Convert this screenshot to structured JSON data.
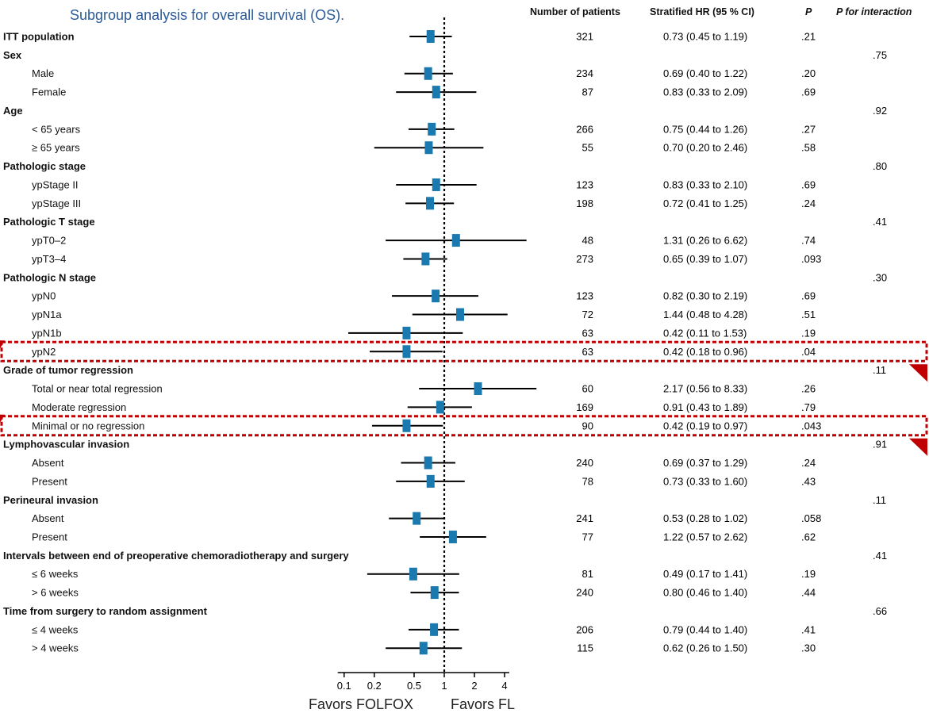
{
  "title": "Subgroup analysis for overall survival (OS).",
  "headers": {
    "patients": "Number of patients",
    "hr": "Stratified HR (95 % CI)",
    "p": "P",
    "p_interaction": "P for interaction"
  },
  "favors_left": "Favors FOLFOX",
  "favors_right": "Favors FL",
  "colors": {
    "marker": "#1a7ab0",
    "highlight": "#c00000",
    "title": "#2a5a9a"
  },
  "chart_data": {
    "type": "forest",
    "x_scale": "log",
    "xlim": [
      0.1,
      4
    ],
    "x_ticks": [
      {
        "value": 0.1,
        "label": "0.1"
      },
      {
        "value": 0.2,
        "label": "0.2"
      },
      {
        "value": 0.5,
        "label": "0.5"
      },
      {
        "value": 1,
        "label": "1"
      },
      {
        "value": 2,
        "label": "2"
      },
      {
        "value": 4,
        "label": "4"
      }
    ],
    "reference_line": 1,
    "rows": [
      {
        "label": "ITT population",
        "level": 0,
        "n": "321",
        "hr_text": "0.73 (0.45 to 1.19)",
        "p": ".21",
        "p_int": "",
        "hr": 0.73,
        "lo": 0.45,
        "hi": 1.19
      },
      {
        "label": "Sex",
        "level": 0,
        "n": "",
        "hr_text": "",
        "p": "",
        "p_int": ".75"
      },
      {
        "label": "Male",
        "level": 1,
        "n": "234",
        "hr_text": "0.69 (0.40 to 1.22)",
        "p": ".20",
        "p_int": "",
        "hr": 0.69,
        "lo": 0.4,
        "hi": 1.22
      },
      {
        "label": "Female",
        "level": 1,
        "n": "87",
        "hr_text": "0.83 (0.33 to 2.09)",
        "p": ".69",
        "p_int": "",
        "hr": 0.83,
        "lo": 0.33,
        "hi": 2.09
      },
      {
        "label": "Age",
        "level": 0,
        "n": "",
        "hr_text": "",
        "p": "",
        "p_int": ".92"
      },
      {
        "label": "< 65 years",
        "level": 1,
        "n": "266",
        "hr_text": "0.75 (0.44 to 1.26)",
        "p": ".27",
        "p_int": "",
        "hr": 0.75,
        "lo": 0.44,
        "hi": 1.26
      },
      {
        "label": "≥ 65 years",
        "level": 1,
        "n": "55",
        "hr_text": "0.70 (0.20 to 2.46)",
        "p": ".58",
        "p_int": "",
        "hr": 0.7,
        "lo": 0.2,
        "hi": 2.46
      },
      {
        "label": "Pathologic stage",
        "level": 0,
        "n": "",
        "hr_text": "",
        "p": "",
        "p_int": ".80"
      },
      {
        "label": "ypStage II",
        "level": 1,
        "n": "123",
        "hr_text": "0.83 (0.33 to 2.10)",
        "p": ".69",
        "p_int": "",
        "hr": 0.83,
        "lo": 0.33,
        "hi": 2.1
      },
      {
        "label": "ypStage III",
        "level": 1,
        "n": "198",
        "hr_text": "0.72 (0.41 to 1.25)",
        "p": ".24",
        "p_int": "",
        "hr": 0.72,
        "lo": 0.41,
        "hi": 1.25
      },
      {
        "label": "Pathologic T stage",
        "level": 0,
        "n": "",
        "hr_text": "",
        "p": "",
        "p_int": ".41"
      },
      {
        "label": "ypT0–2",
        "level": 1,
        "n": "48",
        "hr_text": "1.31 (0.26 to 6.62)",
        "p": ".74",
        "p_int": "",
        "hr": 1.31,
        "lo": 0.26,
        "hi": 6.62
      },
      {
        "label": "ypT3–4",
        "level": 1,
        "n": "273",
        "hr_text": "0.65 (0.39 to 1.07)",
        "p": ".093",
        "p_int": "",
        "hr": 0.65,
        "lo": 0.39,
        "hi": 1.07
      },
      {
        "label": "Pathologic N stage",
        "level": 0,
        "n": "",
        "hr_text": "",
        "p": "",
        "p_int": ".30"
      },
      {
        "label": "ypN0",
        "level": 1,
        "n": "123",
        "hr_text": "0.82 (0.30 to 2.19)",
        "p": ".69",
        "p_int": "",
        "hr": 0.82,
        "lo": 0.3,
        "hi": 2.19
      },
      {
        "label": "ypN1a",
        "level": 1,
        "n": "72",
        "hr_text": "1.44 (0.48 to 4.28)",
        "p": ".51",
        "p_int": "",
        "hr": 1.44,
        "lo": 0.48,
        "hi": 4.28
      },
      {
        "label": "ypN1b",
        "level": 1,
        "n": "63",
        "hr_text": "0.42 (0.11 to 1.53)",
        "p": ".19",
        "p_int": "",
        "hr": 0.42,
        "lo": 0.11,
        "hi": 1.53
      },
      {
        "label": "ypN2",
        "level": 1,
        "n": "63",
        "hr_text": "0.42 (0.18 to 0.96)",
        "p": ".04",
        "p_int": "",
        "hr": 0.42,
        "lo": 0.18,
        "hi": 0.96,
        "highlight": true
      },
      {
        "label": "Grade of tumor regression",
        "level": 0,
        "n": "",
        "hr_text": "",
        "p": "",
        "p_int": ".11"
      },
      {
        "label": "Total or near total regression",
        "level": 1,
        "n": "60",
        "hr_text": "2.17 (0.56 to 8.33)",
        "p": ".26",
        "p_int": "",
        "hr": 2.17,
        "lo": 0.56,
        "hi": 8.33
      },
      {
        "label": "Moderate regression",
        "level": 1,
        "n": "169",
        "hr_text": "0.91 (0.43 to 1.89)",
        "p": ".79",
        "p_int": "",
        "hr": 0.91,
        "lo": 0.43,
        "hi": 1.89
      },
      {
        "label": "Minimal or no regression",
        "level": 1,
        "n": "90",
        "hr_text": "0.42 (0.19 to 0.97)",
        "p": ".043",
        "p_int": "",
        "hr": 0.42,
        "lo": 0.19,
        "hi": 0.97,
        "highlight": true
      },
      {
        "label": "Lymphovascular invasion",
        "level": 0,
        "n": "",
        "hr_text": "",
        "p": "",
        "p_int": ".91"
      },
      {
        "label": "Absent",
        "level": 1,
        "n": "240",
        "hr_text": "0.69 (0.37 to 1.29)",
        "p": ".24",
        "p_int": "",
        "hr": 0.69,
        "lo": 0.37,
        "hi": 1.29
      },
      {
        "label": "Present",
        "level": 1,
        "n": "78",
        "hr_text": "0.73 (0.33 to 1.60)",
        "p": ".43",
        "p_int": "",
        "hr": 0.73,
        "lo": 0.33,
        "hi": 1.6
      },
      {
        "label": "Perineural invasion",
        "level": 0,
        "n": "",
        "hr_text": "",
        "p": "",
        "p_int": ".11"
      },
      {
        "label": "Absent",
        "level": 1,
        "n": "241",
        "hr_text": "0.53 (0.28 to 1.02)",
        "p": ".058",
        "p_int": "",
        "hr": 0.53,
        "lo": 0.28,
        "hi": 1.02
      },
      {
        "label": "Present",
        "level": 1,
        "n": "77",
        "hr_text": "1.22 (0.57 to 2.62)",
        "p": ".62",
        "p_int": "",
        "hr": 1.22,
        "lo": 0.57,
        "hi": 2.62
      },
      {
        "label": "Intervals between end of preoperative chemoradiotherapy and surgery",
        "level": 0,
        "n": "",
        "hr_text": "",
        "p": "",
        "p_int": ".41"
      },
      {
        "label": "≤ 6 weeks",
        "level": 1,
        "n": "81",
        "hr_text": "0.49 (0.17 to 1.41)",
        "p": ".19",
        "p_int": "",
        "hr": 0.49,
        "lo": 0.17,
        "hi": 1.41
      },
      {
        "label": "> 6 weeks",
        "level": 1,
        "n": "240",
        "hr_text": "0.80 (0.46 to 1.40)",
        "p": ".44",
        "p_int": "",
        "hr": 0.8,
        "lo": 0.46,
        "hi": 1.4
      },
      {
        "label": "Time from surgery to random assignment",
        "level": 0,
        "n": "",
        "hr_text": "",
        "p": "",
        "p_int": ".66"
      },
      {
        "label": "≤ 4 weeks",
        "level": 1,
        "n": "206",
        "hr_text": "0.79 (0.44 to 1.40)",
        "p": ".41",
        "p_int": "",
        "hr": 0.79,
        "lo": 0.44,
        "hi": 1.4
      },
      {
        "label": "> 4 weeks",
        "level": 1,
        "n": "115",
        "hr_text": "0.62 (0.26 to 1.50)",
        "p": ".30",
        "p_int": "",
        "hr": 0.62,
        "lo": 0.26,
        "hi": 1.5
      }
    ]
  }
}
